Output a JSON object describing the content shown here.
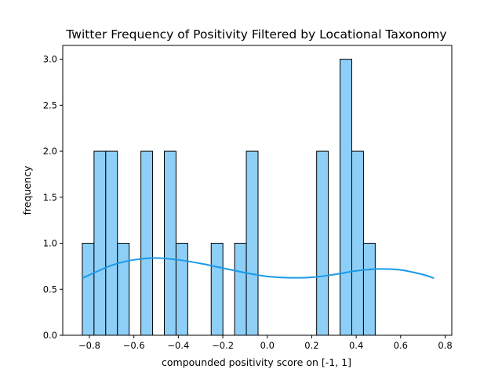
{
  "chart_data": {
    "type": "bar",
    "title": "Twitter Frequency of Positivity Filtered by Locational Taxonomy",
    "xlabel": "compounded positivity score on [-1, 1]",
    "ylabel": "frequency",
    "xlim": [
      -0.92,
      0.83
    ],
    "ylim": [
      0,
      3.15
    ],
    "xticks": [
      "−0.8",
      "−0.6",
      "−0.4",
      "−0.2",
      "0.0",
      "0.2",
      "0.4",
      "0.6",
      "0.8"
    ],
    "xtick_values": [
      -0.8,
      -0.6,
      -0.4,
      -0.2,
      0.0,
      0.2,
      0.4,
      0.6,
      0.8
    ],
    "yticks": [
      "0.0",
      "0.5",
      "1.0",
      "1.5",
      "2.0",
      "2.5",
      "3.0"
    ],
    "ytick_values": [
      0.0,
      0.5,
      1.0,
      1.5,
      2.0,
      2.5,
      3.0
    ],
    "bins": {
      "start": -0.832,
      "width": 0.0527,
      "counts": [
        1,
        2,
        2,
        1,
        0,
        2,
        0,
        2,
        1,
        0,
        0,
        1,
        0,
        1,
        2,
        0,
        0,
        0,
        0,
        0,
        2,
        0,
        3,
        2,
        1
      ]
    },
    "kde": {
      "x": [
        -0.832,
        -0.7,
        -0.6,
        -0.5,
        -0.4,
        -0.3,
        -0.2,
        -0.1,
        0.0,
        0.1,
        0.2,
        0.3,
        0.4,
        0.5,
        0.6,
        0.7,
        0.75
      ],
      "y": [
        0.62,
        0.76,
        0.82,
        0.84,
        0.82,
        0.78,
        0.73,
        0.68,
        0.64,
        0.625,
        0.63,
        0.66,
        0.7,
        0.72,
        0.71,
        0.66,
        0.62
      ]
    },
    "colors": {
      "bar_fill": "#8ecff7",
      "bar_edge": "#000000",
      "kde_line": "#1a9ae8"
    },
    "grid": false,
    "legend": "none"
  }
}
